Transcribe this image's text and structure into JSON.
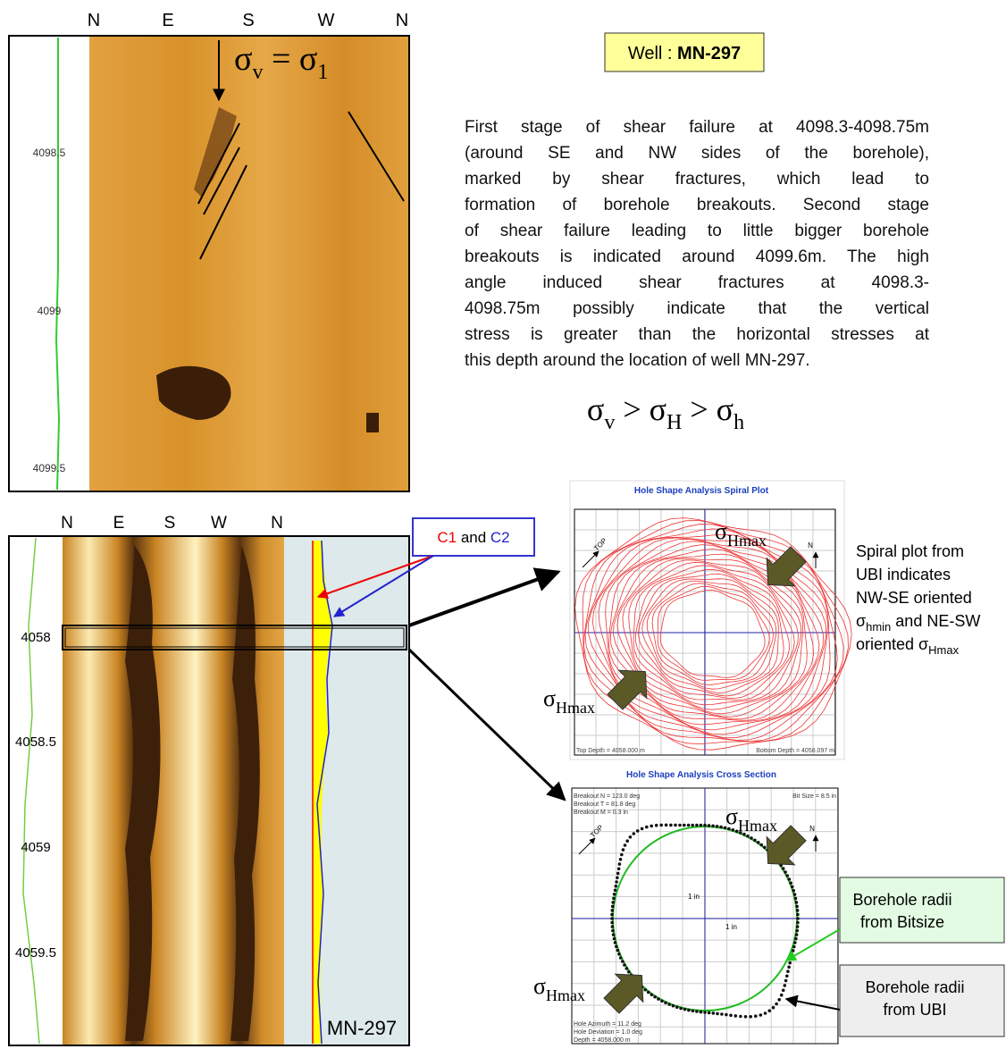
{
  "top_image": {
    "compass": [
      "N",
      "E",
      "S",
      "W",
      "N"
    ],
    "depths": [
      "4098.5",
      "4099",
      "4099.5"
    ],
    "stress_label": [
      "σ",
      "v",
      " = σ",
      "1"
    ]
  },
  "well_label": {
    "prefix": "Well : ",
    "name": "MN-297"
  },
  "description": [
    "First stage of shear failure at 4098.3-4098.75m",
    "(around SE and NW sides of the borehole),",
    "marked by shear fractures, which lead to",
    "formation of borehole breakouts. Second stage",
    "of shear failure leading to little bigger borehole",
    "breakouts is indicated around 4099.6m. The high",
    "angle induced shear fractures at 4098.3-",
    "4098.75m possibly indicate that the vertical",
    "stress is greater than the horizontal stresses at",
    "this depth around the location of well MN-297."
  ],
  "stress_relation": [
    "σ",
    "v",
    " > σ",
    "H",
    " > σ",
    "h"
  ],
  "bottom_image": {
    "compass": [
      "N",
      "E",
      "S",
      "W",
      "N"
    ],
    "depths": [
      "4058",
      "4058.5",
      "4059",
      "4059.5"
    ],
    "well": "MN-297",
    "callout": {
      "c1": "C1",
      "and": " and ",
      "c2": "C2"
    }
  },
  "spiral_plot": {
    "title": "Hole Shape Analysis Spiral Plot",
    "stress_labels": [
      [
        "σ",
        "Hmax"
      ],
      [
        "σ",
        "Hmax"
      ]
    ],
    "top": "TOP",
    "north": "N",
    "top_depth": "Top Depth = 4058.000 m",
    "bottom_depth": "Bottom Depth = 4058.097 m",
    "caption": [
      [
        "Spiral plot from"
      ],
      [
        "UBI indicates"
      ],
      [
        "NW-SE oriented"
      ],
      [
        "σ",
        "hmin",
        " and NE-SW"
      ],
      [
        "oriented σ",
        "Hmax"
      ]
    ]
  },
  "cross_section": {
    "title": "Hole Shape Analysis Cross Section",
    "notes": [
      "Breakout N = 123.0 deg",
      "Breakout T = 81.8 deg",
      "Breakout M = 0.3 in"
    ],
    "bit_size": "Bit Size = 8.5 in",
    "scale_labels": [
      "1 in",
      "1 in"
    ],
    "stress_labels": [
      [
        "σ",
        "Hmax"
      ],
      [
        "σ",
        "Hmax"
      ]
    ],
    "top": "TOP",
    "north": "N",
    "footer": [
      "Hole Azimuth = 11.2 deg",
      "Hole Deviation = 1.0 deg",
      "Depth = 4058.000 m"
    ]
  },
  "legend": {
    "bitsize": [
      "Borehole radii",
      "from Bitsize"
    ],
    "ubi": [
      "Borehole radii",
      "from UBI"
    ]
  }
}
